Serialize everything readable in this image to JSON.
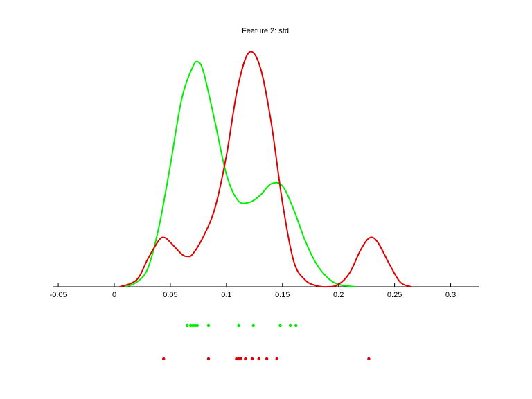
{
  "chart_data": {
    "type": "line",
    "title": "Feature 2: std",
    "xlabel": "",
    "ylabel": "",
    "xlim": [
      -0.055,
      0.325
    ],
    "x_ticks": [
      -0.05,
      0,
      0.05,
      0.1,
      0.15,
      0.2,
      0.25,
      0.3
    ],
    "x_tick_labels": [
      "-0.05",
      "0",
      "0.05",
      "0.1",
      "0.15",
      "0.2",
      "0.25",
      "0.3"
    ],
    "y_axis_visible": false,
    "grid": false,
    "series": [
      {
        "color": "#00ee00",
        "x": [
          0.01,
          0.02,
          0.03,
          0.04,
          0.05,
          0.06,
          0.07,
          0.075,
          0.08,
          0.09,
          0.1,
          0.11,
          0.12,
          0.13,
          0.14,
          0.15,
          0.16,
          0.17,
          0.18,
          0.19,
          0.2,
          0.215
        ],
        "y": [
          0.0,
          0.02,
          0.08,
          0.26,
          0.52,
          0.8,
          0.94,
          0.96,
          0.91,
          0.7,
          0.48,
          0.37,
          0.36,
          0.39,
          0.44,
          0.43,
          0.33,
          0.2,
          0.1,
          0.04,
          0.01,
          0.0
        ],
        "kde_samples": [
          0.065,
          0.068,
          0.07,
          0.072,
          0.074,
          0.084,
          0.111,
          0.124,
          0.148,
          0.157,
          0.162
        ]
      },
      {
        "color": "#dd0000",
        "x": [
          0.005,
          0.02,
          0.03,
          0.04,
          0.045,
          0.05,
          0.06,
          0.065,
          0.07,
          0.08,
          0.09,
          0.1,
          0.11,
          0.12,
          0.13,
          0.14,
          0.15,
          0.16,
          0.17,
          0.18,
          0.19,
          0.2,
          0.21,
          0.22,
          0.228,
          0.235,
          0.245,
          0.255,
          0.265
        ],
        "y": [
          0.0,
          0.03,
          0.12,
          0.2,
          0.21,
          0.19,
          0.14,
          0.13,
          0.14,
          0.22,
          0.34,
          0.56,
          0.85,
          1.0,
          0.94,
          0.7,
          0.36,
          0.11,
          0.03,
          0.005,
          0.0,
          0.01,
          0.06,
          0.16,
          0.21,
          0.19,
          0.1,
          0.02,
          0.0
        ],
        "kde_samples": [
          0.044,
          0.084,
          0.109,
          0.111,
          0.113,
          0.117,
          0.123,
          0.129,
          0.136,
          0.145,
          0.227
        ]
      }
    ]
  }
}
